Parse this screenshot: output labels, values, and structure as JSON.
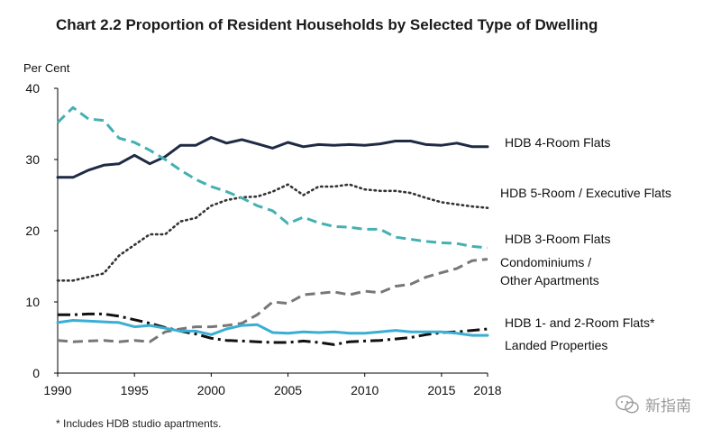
{
  "title": "Chart 2.2  Proportion of Resident Households by Selected Type of Dwelling",
  "footnote": "* Includes HDB studio apartments.",
  "watermark": "新指南",
  "chart_data": {
    "type": "line",
    "ylabel": "Per Cent",
    "xlabel": "",
    "xlim": [
      1990,
      2018
    ],
    "ylim": [
      0,
      40
    ],
    "xticks": [
      "1990",
      "1995",
      "2000",
      "2005",
      "2010",
      "2015",
      "2018"
    ],
    "yticks": [
      "0",
      "10",
      "20",
      "30",
      "40"
    ],
    "grid": false,
    "x": [
      1990,
      1991,
      1992,
      1993,
      1994,
      1995,
      1996,
      1997,
      1998,
      1999,
      2000,
      2001,
      2002,
      2003,
      2004,
      2005,
      2006,
      2007,
      2008,
      2009,
      2010,
      2011,
      2012,
      2013,
      2014,
      2015,
      2016,
      2017,
      2018
    ],
    "series": [
      {
        "name": "HDB 4-Room Flats",
        "label": "HDB 4-Room Flats",
        "color": "#1f2a44",
        "dash": "solid",
        "values": [
          27.5,
          27.5,
          28.5,
          29.2,
          29.4,
          30.6,
          29.4,
          30.4,
          32.0,
          32.0,
          33.1,
          32.3,
          32.8,
          32.2,
          31.6,
          32.4,
          31.8,
          32.1,
          32.0,
          32.1,
          32.0,
          32.2,
          32.6,
          32.6,
          32.1,
          32.0,
          32.3,
          31.8,
          31.8
        ]
      },
      {
        "name": "HDB 5-Room / Executive Flats",
        "label": "HDB 5-Room / Executive  Flats",
        "color": "#333333",
        "dash": "dotted",
        "values": [
          13.0,
          13.0,
          13.5,
          14.0,
          16.5,
          18.0,
          19.5,
          19.5,
          21.3,
          21.8,
          23.5,
          24.3,
          24.7,
          24.8,
          25.5,
          26.5,
          25.0,
          26.2,
          26.2,
          26.5,
          25.8,
          25.6,
          25.6,
          25.3,
          24.6,
          24.0,
          23.7,
          23.4,
          23.2
        ]
      },
      {
        "name": "HDB 3-Room Flats",
        "label": "HDB 3-Room Flats",
        "color": "#45b0b2",
        "dash": "dashed",
        "values": [
          35.2,
          37.3,
          35.7,
          35.5,
          33.0,
          32.4,
          31.3,
          30.0,
          28.5,
          27.2,
          26.2,
          25.5,
          24.6,
          23.5,
          22.8,
          21.0,
          21.9,
          21.1,
          20.6,
          20.5,
          20.2,
          20.2,
          19.1,
          18.8,
          18.5,
          18.3,
          18.2,
          17.8,
          17.6
        ]
      },
      {
        "name": "Condominiums / Other Apartments",
        "label": "Condominiums /",
        "label2": "Other Apartments",
        "color": "#777777",
        "dash": "dashed",
        "values": [
          4.6,
          4.4,
          4.5,
          4.6,
          4.4,
          4.6,
          4.4,
          5.8,
          6.2,
          6.5,
          6.5,
          6.7,
          7.0,
          8.2,
          10.0,
          9.8,
          11.0,
          11.2,
          11.4,
          11.0,
          11.5,
          11.3,
          12.2,
          12.5,
          13.5,
          14.1,
          14.7,
          15.8,
          16.0
        ]
      },
      {
        "name": "HDB 1- and 2-Room Flats*",
        "label": "HDB 1- and 2-Room Flats*",
        "color": "#111111",
        "dash": "dashdot",
        "values": [
          8.2,
          8.2,
          8.3,
          8.3,
          8.0,
          7.5,
          7.0,
          6.4,
          5.9,
          5.5,
          4.9,
          4.6,
          4.5,
          4.4,
          4.3,
          4.3,
          4.5,
          4.3,
          4.0,
          4.4,
          4.5,
          4.6,
          4.8,
          5.0,
          5.4,
          5.7,
          5.8,
          6.0,
          6.2
        ]
      },
      {
        "name": "Landed Properties",
        "label": "Landed Properties",
        "color": "#3aaed4",
        "dash": "solid",
        "values": [
          7.1,
          7.4,
          7.3,
          7.2,
          7.1,
          6.5,
          6.7,
          6.3,
          5.9,
          5.9,
          5.4,
          6.2,
          6.7,
          6.8,
          5.7,
          5.6,
          5.8,
          5.7,
          5.8,
          5.6,
          5.6,
          5.8,
          6.0,
          5.8,
          5.8,
          5.8,
          5.6,
          5.3,
          5.3
        ]
      }
    ]
  }
}
